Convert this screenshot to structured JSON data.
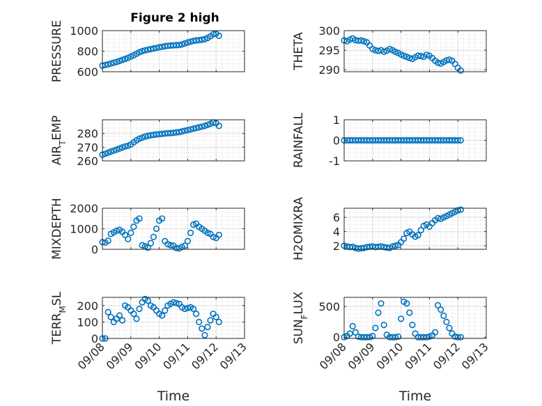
{
  "figure_title": "Figure 2 high",
  "x_axis_label": "Time",
  "x_tick_labels": [
    "09/08",
    "09/09",
    "09/10",
    "09/11",
    "09/12",
    "09/13"
  ],
  "marker_color": "#0072BD",
  "chart_data": [
    {
      "type": "scatter",
      "id": "pressure",
      "ylabel": "PRESSURE",
      "title": "Figure 2 high",
      "xlim": [
        0,
        5
      ],
      "ylim": [
        600,
        1000
      ],
      "yticks": [
        600,
        800,
        1000
      ],
      "x": [
        0.0,
        0.1,
        0.2,
        0.3,
        0.4,
        0.5,
        0.6,
        0.7,
        0.8,
        0.9,
        1.0,
        1.1,
        1.2,
        1.3,
        1.4,
        1.5,
        1.6,
        1.7,
        1.8,
        1.9,
        2.0,
        2.1,
        2.2,
        2.3,
        2.4,
        2.5,
        2.6,
        2.7,
        2.8,
        2.9,
        3.0,
        3.1,
        3.2,
        3.3,
        3.4,
        3.5,
        3.6,
        3.7,
        3.8,
        3.9,
        4.0,
        4.1
      ],
      "y": [
        660,
        665,
        672,
        680,
        688,
        695,
        705,
        715,
        725,
        735,
        748,
        760,
        775,
        790,
        800,
        808,
        815,
        820,
        826,
        832,
        838,
        843,
        848,
        852,
        855,
        857,
        858,
        860,
        866,
        875,
        885,
        893,
        900,
        905,
        908,
        912,
        918,
        928,
        945,
        965,
        970,
        950
      ]
    },
    {
      "type": "scatter",
      "id": "theta",
      "ylabel": "THETA",
      "xlim": [
        0,
        5
      ],
      "ylim": [
        289.5,
        300
      ],
      "yticks": [
        290,
        295,
        300
      ],
      "x": [
        0.0,
        0.1,
        0.2,
        0.3,
        0.4,
        0.5,
        0.6,
        0.7,
        0.8,
        0.9,
        1.0,
        1.1,
        1.2,
        1.3,
        1.4,
        1.5,
        1.6,
        1.7,
        1.8,
        1.9,
        2.0,
        2.1,
        2.2,
        2.3,
        2.4,
        2.5,
        2.6,
        2.7,
        2.8,
        2.9,
        3.0,
        3.1,
        3.2,
        3.3,
        3.4,
        3.5,
        3.6,
        3.7,
        3.8,
        3.9,
        4.0,
        4.1
      ],
      "y": [
        297.5,
        297.3,
        297.7,
        298.0,
        297.6,
        297.4,
        297.5,
        297.3,
        297.0,
        296.2,
        295.3,
        295.0,
        294.8,
        295.0,
        294.6,
        294.9,
        295.3,
        295.0,
        294.6,
        294.3,
        293.9,
        293.6,
        293.3,
        293.0,
        292.8,
        293.2,
        293.6,
        293.5,
        293.3,
        293.8,
        293.6,
        293.0,
        292.3,
        291.8,
        291.6,
        292.0,
        292.4,
        292.6,
        292.3,
        291.5,
        290.5,
        289.8
      ]
    },
    {
      "type": "scatter",
      "id": "air_temp",
      "ylabel": "AIR_TEMP",
      "xlim": [
        0,
        5
      ],
      "ylim": [
        260,
        290
      ],
      "yticks": [
        260,
        270,
        280
      ],
      "x": [
        0.0,
        0.1,
        0.2,
        0.3,
        0.4,
        0.5,
        0.6,
        0.7,
        0.8,
        0.9,
        1.0,
        1.1,
        1.2,
        1.3,
        1.4,
        1.5,
        1.6,
        1.7,
        1.8,
        1.9,
        2.0,
        2.1,
        2.2,
        2.3,
        2.4,
        2.5,
        2.6,
        2.7,
        2.8,
        2.9,
        3.0,
        3.1,
        3.2,
        3.3,
        3.4,
        3.5,
        3.6,
        3.7,
        3.8,
        3.9,
        4.0,
        4.1
      ],
      "y": [
        264.5,
        265.2,
        266.0,
        266.8,
        267.5,
        268.2,
        269.0,
        269.8,
        270.5,
        271.0,
        272.0,
        273.5,
        275.0,
        276.2,
        277.0,
        277.8,
        278.3,
        278.7,
        279.0,
        279.3,
        279.5,
        279.8,
        280.0,
        280.2,
        280.3,
        280.5,
        280.8,
        281.0,
        281.5,
        282.0,
        282.5,
        283.0,
        283.5,
        284.0,
        284.5,
        285.0,
        285.5,
        286.3,
        287.0,
        288.0,
        287.5,
        285.5
      ]
    },
    {
      "type": "scatter",
      "id": "rainfall",
      "ylabel": "RAINFALL",
      "xlim": [
        0,
        5
      ],
      "ylim": [
        -1,
        1
      ],
      "yticks": [
        -1,
        0,
        1
      ],
      "x": [
        0.0,
        0.1,
        0.2,
        0.3,
        0.4,
        0.5,
        0.6,
        0.7,
        0.8,
        0.9,
        1.0,
        1.1,
        1.2,
        1.3,
        1.4,
        1.5,
        1.6,
        1.7,
        1.8,
        1.9,
        2.0,
        2.1,
        2.2,
        2.3,
        2.4,
        2.5,
        2.6,
        2.7,
        2.8,
        2.9,
        3.0,
        3.1,
        3.2,
        3.3,
        3.4,
        3.5,
        3.6,
        3.7,
        3.8,
        3.9,
        4.0,
        4.1
      ],
      "y": [
        0,
        0,
        0,
        0,
        0,
        0,
        0,
        0,
        0,
        0,
        0,
        0,
        0,
        0,
        0,
        0,
        0,
        0,
        0,
        0,
        0,
        0,
        0,
        0,
        0,
        0,
        0,
        0,
        0,
        0,
        0,
        0,
        0,
        0,
        0,
        0,
        0,
        0,
        0,
        0,
        0,
        0
      ]
    },
    {
      "type": "scatter",
      "id": "mixdepth",
      "ylabel": "MIXDEPTH",
      "xlim": [
        0,
        5
      ],
      "ylim": [
        0,
        2000
      ],
      "yticks": [
        0,
        1000,
        2000
      ],
      "x": [
        0.0,
        0.1,
        0.2,
        0.3,
        0.4,
        0.5,
        0.6,
        0.7,
        0.8,
        0.9,
        1.0,
        1.1,
        1.2,
        1.3,
        1.4,
        1.5,
        1.6,
        1.7,
        1.8,
        1.9,
        2.0,
        2.1,
        2.2,
        2.3,
        2.4,
        2.5,
        2.6,
        2.7,
        2.8,
        2.9,
        3.0,
        3.1,
        3.2,
        3.3,
        3.4,
        3.5,
        3.6,
        3.7,
        3.8,
        3.9,
        4.0,
        4.1
      ],
      "y": [
        350,
        330,
        420,
        750,
        820,
        900,
        950,
        850,
        700,
        500,
        800,
        1100,
        1400,
        1500,
        200,
        150,
        80,
        300,
        600,
        1000,
        1400,
        1500,
        400,
        250,
        200,
        180,
        60,
        40,
        120,
        180,
        400,
        800,
        1200,
        1250,
        1100,
        1000,
        900,
        800,
        750,
        600,
        550,
        700
      ]
    },
    {
      "type": "scatter",
      "id": "h2omixra",
      "ylabel": "H2OMIXRA",
      "xlim": [
        0,
        5
      ],
      "ylim": [
        1.5,
        7.3
      ],
      "yticks": [
        2,
        4,
        6
      ],
      "x": [
        0.0,
        0.1,
        0.2,
        0.3,
        0.4,
        0.5,
        0.6,
        0.7,
        0.8,
        0.9,
        1.0,
        1.1,
        1.2,
        1.3,
        1.4,
        1.5,
        1.6,
        1.7,
        1.8,
        1.9,
        2.0,
        2.1,
        2.2,
        2.3,
        2.4,
        2.5,
        2.6,
        2.7,
        2.8,
        2.9,
        3.0,
        3.1,
        3.2,
        3.3,
        3.4,
        3.5,
        3.6,
        3.7,
        3.8,
        3.9,
        4.0,
        4.1
      ],
      "y": [
        2.0,
        1.9,
        1.8,
        1.85,
        1.7,
        1.6,
        1.65,
        1.7,
        1.8,
        1.85,
        1.9,
        1.8,
        1.85,
        1.9,
        1.8,
        1.75,
        1.7,
        1.9,
        2.0,
        2.1,
        2.5,
        3.0,
        3.8,
        4.0,
        3.6,
        3.3,
        3.5,
        4.2,
        4.8,
        5.0,
        4.7,
        5.2,
        5.6,
        5.9,
        5.8,
        6.0,
        6.2,
        6.4,
        6.6,
        6.8,
        7.0,
        7.1
      ]
    },
    {
      "type": "scatter",
      "id": "terr_msl",
      "ylabel": "TERR_MSL",
      "xlim": [
        0,
        5
      ],
      "ylim": [
        0,
        250
      ],
      "yticks": [
        0,
        100,
        200
      ],
      "x": [
        0.0,
        0.1,
        0.2,
        0.3,
        0.4,
        0.5,
        0.6,
        0.7,
        0.8,
        0.9,
        1.0,
        1.1,
        1.2,
        1.3,
        1.4,
        1.5,
        1.6,
        1.7,
        1.8,
        1.9,
        2.0,
        2.1,
        2.2,
        2.3,
        2.4,
        2.5,
        2.6,
        2.7,
        2.8,
        2.9,
        3.0,
        3.1,
        3.2,
        3.3,
        3.4,
        3.5,
        3.6,
        3.7,
        3.8,
        3.9,
        4.0,
        4.1
      ],
      "y": [
        0,
        0,
        160,
        130,
        100,
        120,
        140,
        110,
        200,
        190,
        170,
        150,
        120,
        180,
        220,
        240,
        230,
        200,
        190,
        170,
        150,
        140,
        170,
        200,
        210,
        220,
        215,
        210,
        190,
        180,
        185,
        190,
        180,
        150,
        100,
        60,
        20,
        70,
        110,
        150,
        130,
        100
      ]
    },
    {
      "type": "scatter",
      "id": "sun_flux",
      "ylabel": "SUN_FLUX",
      "xlim": [
        0,
        5
      ],
      "ylim": [
        -20,
        650
      ],
      "yticks": [
        0,
        500
      ],
      "x": [
        0.0,
        0.1,
        0.2,
        0.3,
        0.4,
        0.5,
        0.6,
        0.7,
        0.8,
        0.9,
        1.0,
        1.1,
        1.2,
        1.3,
        1.4,
        1.5,
        1.6,
        1.7,
        1.8,
        1.9,
        2.0,
        2.1,
        2.2,
        2.3,
        2.4,
        2.5,
        2.6,
        2.7,
        2.8,
        2.9,
        3.0,
        3.1,
        3.2,
        3.3,
        3.4,
        3.5,
        3.6,
        3.7,
        3.8,
        3.9,
        4.0,
        4.1
      ],
      "y": [
        0,
        20,
        60,
        180,
        80,
        10,
        0,
        0,
        0,
        0,
        20,
        150,
        400,
        550,
        200,
        40,
        0,
        0,
        0,
        10,
        300,
        580,
        550,
        400,
        200,
        60,
        0,
        0,
        0,
        0,
        10,
        30,
        80,
        520,
        450,
        350,
        250,
        150,
        60,
        10,
        0,
        0
      ]
    }
  ]
}
